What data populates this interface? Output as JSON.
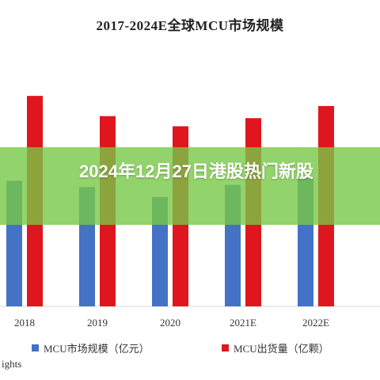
{
  "banner": {
    "title": "2024年12月27日港股热门新股",
    "color": "#7cc84a"
  },
  "footnote_text": "ights",
  "chart_data": {
    "type": "bar",
    "title": "2017-2024E全球MCU市场规模",
    "categories": [
      "2018",
      "2019",
      "2020",
      "2021E",
      "2022E"
    ],
    "series": [
      {
        "name": "MCU市场规模（亿元）",
        "color": "#4472c4",
        "values": [
          31,
          29.5,
          27,
          30,
          32
        ]
      },
      {
        "name": "MCU出货量（亿颗）",
        "color": "#e0161e",
        "values": [
          52,
          47,
          44.5,
          46.5,
          49.5
        ]
      }
    ],
    "xlabel": "",
    "ylabel": "",
    "ylim": [
      0,
      62
    ],
    "grid": false,
    "legend": "bottom"
  }
}
